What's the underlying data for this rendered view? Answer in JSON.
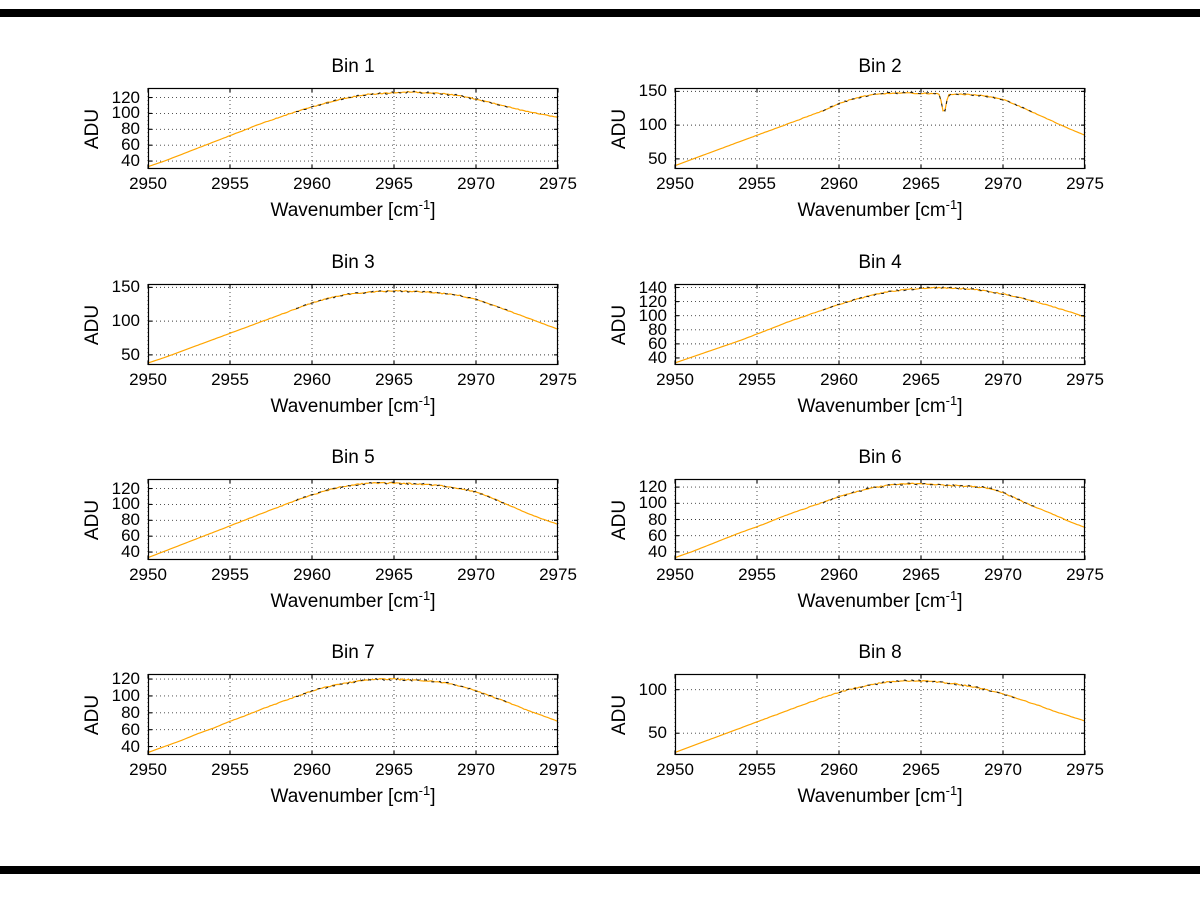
{
  "decorations": {
    "top_bar_color": "#000000",
    "bottom_bar_color": "#000000"
  },
  "chart_defaults": {
    "type": "line",
    "xlabel_prefix": "Wavenumber [cm",
    "xlabel_sup": "-1",
    "xlabel_suffix": "]",
    "ylabel": "ADU",
    "xlim": [
      2950,
      2975
    ],
    "xticks": [
      2950,
      2955,
      2960,
      2965,
      2970,
      2975
    ],
    "x_start": 2950,
    "x_step": 1,
    "grid": true,
    "line_color": "#FFA500",
    "overlay_color": "#1a1a1a"
  },
  "chart_data": [
    {
      "type": "line",
      "title": "Bin 1",
      "ylim": [
        30,
        132
      ],
      "yticks": [
        40,
        60,
        80,
        100,
        120
      ],
      "overlay_range": [
        2959,
        2972
      ],
      "values": [
        33,
        40,
        48,
        56,
        64,
        72,
        80,
        88,
        95,
        102,
        108,
        114,
        119,
        123,
        125,
        126,
        127,
        126,
        125,
        122,
        118,
        113,
        108,
        103,
        99,
        95
      ]
    },
    {
      "type": "line",
      "title": "Bin 2",
      "ylim": [
        35,
        155
      ],
      "yticks": [
        50,
        100,
        150
      ],
      "overlay_range": [
        2959,
        2972
      ],
      "spikes": [
        {
          "x": 2966.4,
          "depth": 28,
          "width": 0.18
        }
      ],
      "values": [
        40,
        49,
        58,
        67,
        76,
        85,
        94,
        103,
        112,
        121,
        132,
        140,
        145,
        147,
        148,
        147,
        147,
        146,
        145,
        143,
        138,
        128,
        117,
        106,
        95,
        85
      ]
    },
    {
      "type": "line",
      "title": "Bin 3",
      "ylim": [
        35,
        155
      ],
      "yticks": [
        50,
        100,
        150
      ],
      "overlay_range": [
        2959,
        2972
      ],
      "values": [
        38,
        46,
        55,
        64,
        73,
        82,
        91,
        100,
        109,
        118,
        127,
        134,
        139,
        142,
        144,
        145,
        144,
        143,
        141,
        138,
        132,
        124,
        115,
        106,
        97,
        88
      ]
    },
    {
      "type": "line",
      "title": "Bin 4",
      "ylim": [
        30,
        145
      ],
      "yticks": [
        40,
        60,
        80,
        100,
        120,
        140
      ],
      "overlay_range": [
        2959,
        2972
      ],
      "values": [
        33,
        41,
        49,
        57,
        65,
        74,
        83,
        92,
        100,
        108,
        116,
        123,
        129,
        134,
        137,
        139,
        140,
        139,
        138,
        135,
        131,
        126,
        120,
        113,
        106,
        98
      ]
    },
    {
      "type": "line",
      "title": "Bin 5",
      "ylim": [
        30,
        132
      ],
      "yticks": [
        40,
        60,
        80,
        100,
        120
      ],
      "overlay_range": [
        2959,
        2972
      ],
      "values": [
        33,
        41,
        49,
        57,
        65,
        73,
        81,
        89,
        97,
        105,
        112,
        118,
        123,
        126,
        127,
        127,
        126,
        125,
        123,
        120,
        116,
        108,
        99,
        90,
        82,
        75
      ]
    },
    {
      "type": "line",
      "title": "Bin 6",
      "ylim": [
        30,
        130
      ],
      "yticks": [
        40,
        60,
        80,
        100,
        120
      ],
      "overlay_range": [
        2959,
        2972
      ],
      "values": [
        33,
        40,
        48,
        56,
        64,
        71,
        79,
        87,
        94,
        101,
        108,
        114,
        119,
        122,
        124,
        124,
        123,
        122,
        121,
        119,
        113,
        104,
        95,
        87,
        78,
        70
      ]
    },
    {
      "type": "line",
      "title": "Bin 7",
      "ylim": [
        30,
        126
      ],
      "yticks": [
        40,
        60,
        80,
        100,
        120
      ],
      "overlay_range": [
        2959,
        2972
      ],
      "values": [
        33,
        40,
        47,
        55,
        62,
        70,
        77,
        85,
        92,
        99,
        106,
        111,
        115,
        118,
        120,
        120,
        119,
        118,
        116,
        112,
        106,
        99,
        92,
        84,
        77,
        70
      ]
    },
    {
      "type": "line",
      "title": "Bin 8",
      "ylim": [
        25,
        118
      ],
      "yticks": [
        50,
        100
      ],
      "overlay_range": [
        2960,
        2971
      ],
      "values": [
        28,
        35,
        42,
        49,
        56,
        63,
        70,
        77,
        84,
        91,
        97,
        102,
        106,
        109,
        110,
        110,
        109,
        107,
        104,
        100,
        95,
        89,
        83,
        76,
        70,
        64
      ]
    }
  ]
}
